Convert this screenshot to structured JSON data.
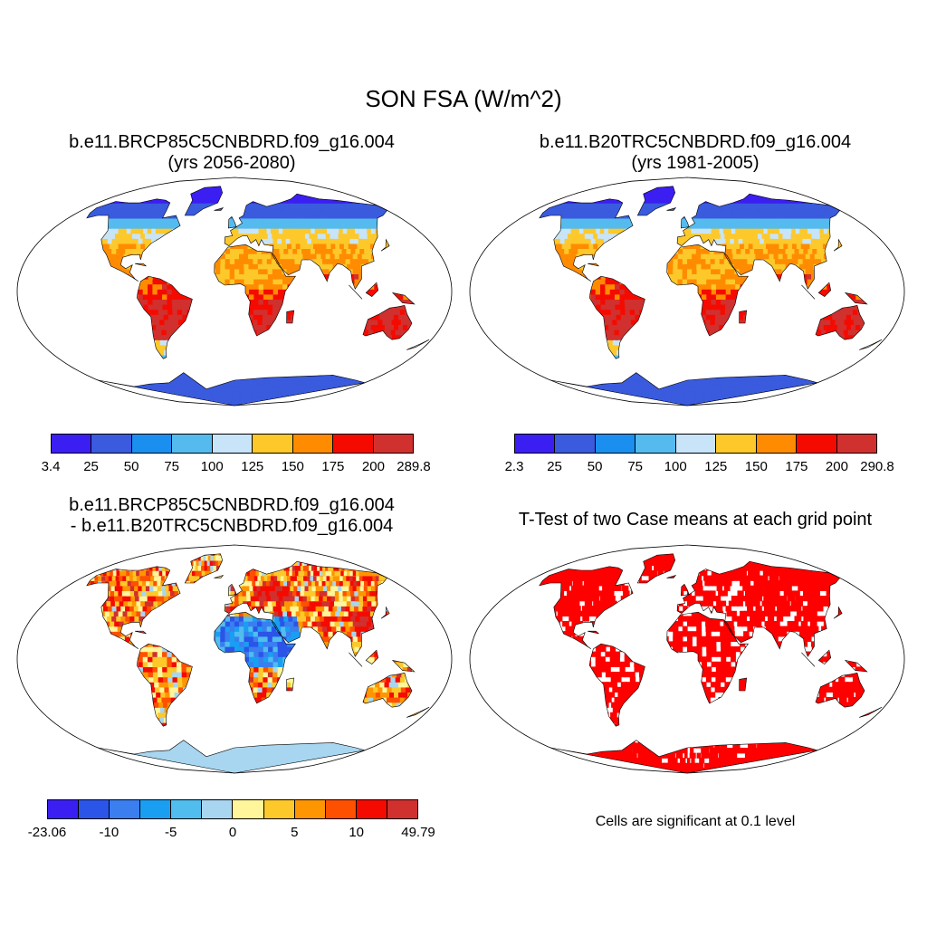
{
  "figure": {
    "title": "SON FSA (W/m^2)"
  },
  "panels": [
    {
      "title_line1": "b.e11.BRCP85C5CNBDRD.f09_g16.004",
      "title_line2": "(yrs 2056-2080)"
    },
    {
      "title_line1": "b.e11.B20TRC5CNBDRD.f09_g16.004",
      "title_line2": "(yrs 1981-2005)"
    },
    {
      "title_line1": "b.e11.BRCP85C5CNBDRD.f09_g16.004",
      "title_line2": "- b.e11.B20TRC5CNBDRD.f09_g16.004"
    },
    {
      "title_line1": "T-Test of two Case means at each grid point",
      "note": "Cells are significant at 0.1 level"
    }
  ],
  "colorbars": [
    {
      "labels": [
        "3.4",
        "25",
        "50",
        "75",
        "100",
        "125",
        "150",
        "175",
        "200",
        "289.8"
      ],
      "colors": [
        "#3b1ff2",
        "#3a5bde",
        "#1a8ff0",
        "#55bbee",
        "#c8e4f8",
        "#fdc82a",
        "#ff8c00",
        "#f50a00",
        "#d0302e"
      ]
    },
    {
      "labels": [
        "2.3",
        "25",
        "50",
        "75",
        "100",
        "125",
        "150",
        "175",
        "200",
        "290.8"
      ],
      "colors": [
        "#3b1ff2",
        "#3a5bde",
        "#1a8ff0",
        "#55bbee",
        "#c8e4f8",
        "#fdc82a",
        "#ff8c00",
        "#f50a00",
        "#d0302e"
      ]
    },
    {
      "labels": [
        "-23.06",
        "-10",
        "-5",
        "0",
        "5",
        "10",
        "49.79"
      ],
      "colors": [
        "#3b1ff2",
        "#2a55e8",
        "#3a7ef0",
        "#1a9ef2",
        "#50bdee",
        "#a8d6f0",
        "#fff59a",
        "#fdc82a",
        "#ff9500",
        "#ff5000",
        "#f50a00",
        "#d0302e"
      ]
    }
  ],
  "colors": {
    "sig_red": "#ff0000",
    "ocean": "#ffffff",
    "outline": "#000000"
  }
}
